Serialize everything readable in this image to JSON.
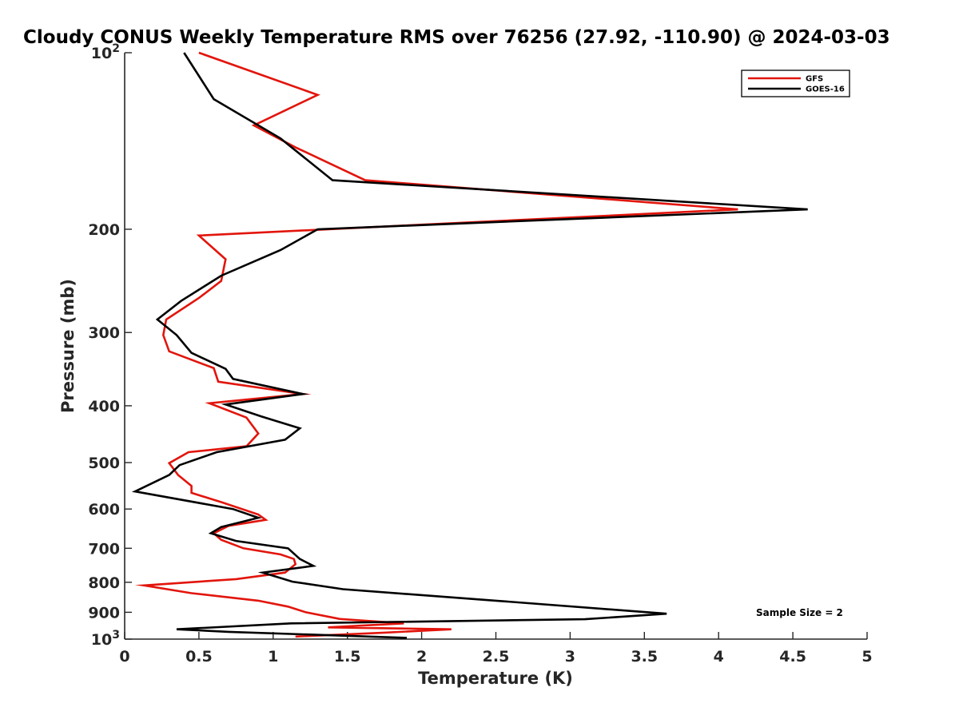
{
  "chart_data": {
    "type": "line",
    "title": "Cloudy CONUS Weekly Temperature RMS over 76256 (27.92, -110.90) @ 2024-03-03",
    "xlabel": "Temperature (K)",
    "ylabel": "Pressure (mb)",
    "xlim": [
      0,
      5
    ],
    "ylim": [
      100,
      1000
    ],
    "yscale": "log",
    "y_reversed": true,
    "grid": false,
    "legend_location": "top-right",
    "xticks": [
      0,
      0.5,
      1,
      1.5,
      2,
      2.5,
      3,
      3.5,
      4,
      4.5,
      5
    ],
    "xtick_labels": [
      "0",
      "0.5",
      "1",
      "1.5",
      "2",
      "2.5",
      "3",
      "3.5",
      "4",
      "4.5",
      "5"
    ],
    "yticks": [
      100,
      200,
      300,
      400,
      500,
      600,
      700,
      800,
      900,
      1000
    ],
    "ytick_labels": [
      {
        "base": "10",
        "exp": "2"
      },
      {
        "base": "200",
        "exp": ""
      },
      {
        "base": "300",
        "exp": ""
      },
      {
        "base": "400",
        "exp": ""
      },
      {
        "base": "500",
        "exp": ""
      },
      {
        "base": "600",
        "exp": ""
      },
      {
        "base": "700",
        "exp": ""
      },
      {
        "base": "800",
        "exp": ""
      },
      {
        "base": "900",
        "exp": ""
      },
      {
        "base": "10",
        "exp": "3"
      }
    ],
    "annotation": "Sample Size = 2",
    "series": [
      {
        "name": "GFS",
        "color": "#e2150c",
        "points": [
          [
            0.5,
            100
          ],
          [
            1.3,
            118
          ],
          [
            0.87,
            133
          ],
          [
            1.15,
            145
          ],
          [
            1.62,
            165
          ],
          [
            4.13,
            185
          ],
          [
            0.5,
            205
          ],
          [
            0.68,
            225
          ],
          [
            0.65,
            245
          ],
          [
            0.5,
            262
          ],
          [
            0.28,
            285
          ],
          [
            0.26,
            303
          ],
          [
            0.3,
            323
          ],
          [
            0.6,
            345
          ],
          [
            0.63,
            364
          ],
          [
            1.2,
            382
          ],
          [
            0.57,
            396
          ],
          [
            0.82,
            419
          ],
          [
            0.9,
            446
          ],
          [
            0.82,
            469
          ],
          [
            0.43,
            480
          ],
          [
            0.3,
            501
          ],
          [
            0.36,
            525
          ],
          [
            0.45,
            548
          ],
          [
            0.45,
            563
          ],
          [
            0.65,
            584
          ],
          [
            0.9,
            613
          ],
          [
            0.95,
            626
          ],
          [
            0.7,
            641
          ],
          [
            0.6,
            660
          ],
          [
            0.65,
            677
          ],
          [
            0.8,
            700
          ],
          [
            1.05,
            717
          ],
          [
            1.14,
            730
          ],
          [
            1.15,
            745
          ],
          [
            1.08,
            770
          ],
          [
            0.75,
            790
          ],
          [
            0.13,
            810
          ],
          [
            0.45,
            835
          ],
          [
            0.9,
            860
          ],
          [
            1.1,
            880
          ],
          [
            1.22,
            900
          ],
          [
            1.45,
            924
          ],
          [
            1.88,
            940
          ],
          [
            1.37,
            955
          ],
          [
            2.2,
            962
          ],
          [
            1.75,
            975
          ],
          [
            1.15,
            990
          ]
        ]
      },
      {
        "name": "GOES-16",
        "color": "#000000",
        "points": [
          [
            0.4,
            100
          ],
          [
            0.6,
            120
          ],
          [
            1.05,
            140
          ],
          [
            1.4,
            165
          ],
          [
            4.6,
            185
          ],
          [
            1.3,
            200
          ],
          [
            1.05,
            217
          ],
          [
            0.65,
            240
          ],
          [
            0.38,
            265
          ],
          [
            0.22,
            285
          ],
          [
            0.35,
            303
          ],
          [
            0.45,
            325
          ],
          [
            0.68,
            346
          ],
          [
            0.73,
            360
          ],
          [
            1.2,
            382
          ],
          [
            0.68,
            398
          ],
          [
            0.92,
            417
          ],
          [
            1.18,
            437
          ],
          [
            1.08,
            457
          ],
          [
            0.62,
            480
          ],
          [
            0.37,
            505
          ],
          [
            0.3,
            525
          ],
          [
            0.07,
            560
          ],
          [
            0.73,
            600
          ],
          [
            0.9,
            621
          ],
          [
            0.65,
            644
          ],
          [
            0.58,
            660
          ],
          [
            0.75,
            680
          ],
          [
            1.1,
            700
          ],
          [
            1.18,
            730
          ],
          [
            1.27,
            750
          ],
          [
            0.93,
            770
          ],
          [
            1.13,
            798
          ],
          [
            1.47,
            822
          ],
          [
            2.5,
            860
          ],
          [
            3.65,
            905
          ],
          [
            3.1,
            925
          ],
          [
            1.12,
            940
          ],
          [
            0.35,
            962
          ],
          [
            0.7,
            972
          ],
          [
            1.9,
            995
          ]
        ]
      }
    ]
  }
}
